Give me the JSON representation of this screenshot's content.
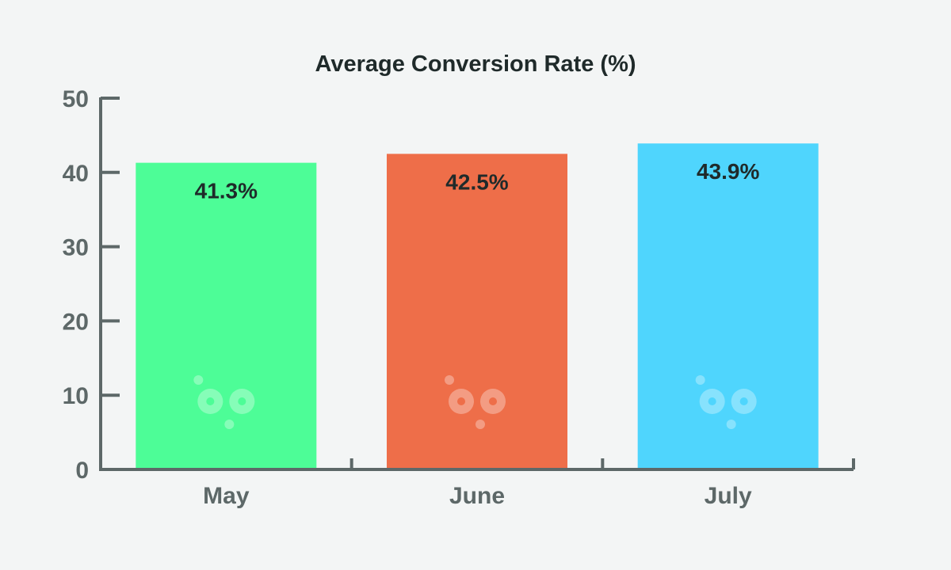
{
  "chart_data": {
    "type": "bar",
    "title": "Average Conversion Rate (%)",
    "categories": [
      "May",
      "June",
      "July"
    ],
    "values": [
      41.3,
      42.5,
      43.9
    ],
    "data_labels": [
      "41.3%",
      "42.5%",
      "43.9%"
    ],
    "colors": [
      "#4dfd97",
      "#ee6e49",
      "#4fd5fd"
    ],
    "ylim": [
      0,
      50
    ],
    "yticks": [
      0,
      10,
      20,
      30,
      40,
      50
    ],
    "ytick_labels": [
      "0",
      "10",
      "20",
      "30",
      "40",
      "50"
    ],
    "xlabel": "",
    "ylabel": "",
    "grid": false,
    "legend": "none"
  },
  "colors": {
    "background": "#f3f5f5",
    "axis": "#5d6868",
    "title": "#1f2a2a"
  }
}
